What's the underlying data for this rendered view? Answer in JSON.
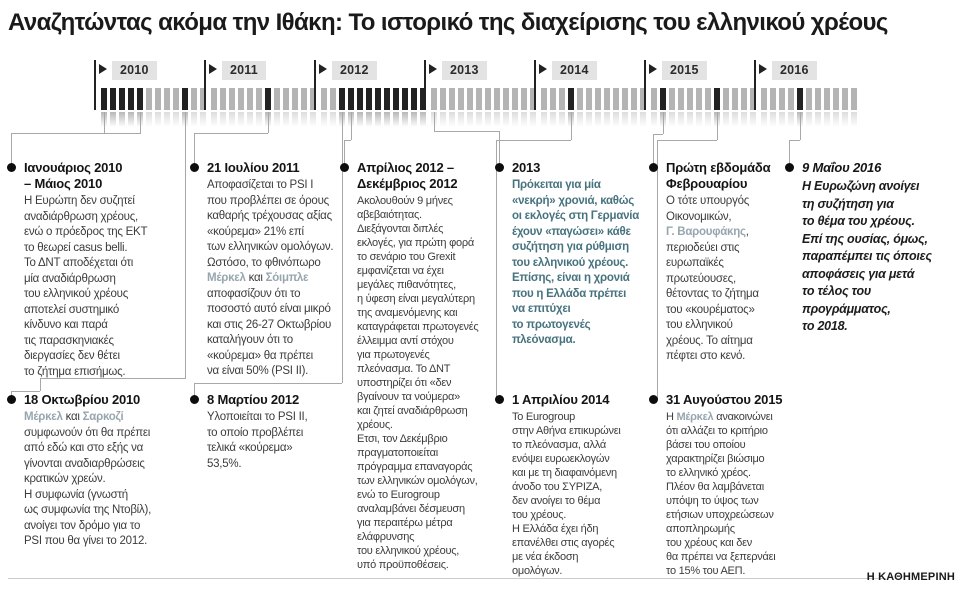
{
  "title": "Αναζητώντας ακόμα την Ιθάκη: Το ιστορικό της διαχείρισης του ελληνικού χρέους",
  "brand": "Η ΚΑΘΗΜΕΡΙΝΗ",
  "timeline": {
    "years": [
      {
        "label": "2010",
        "months": [
          1,
          1,
          1,
          1,
          1,
          0,
          0,
          0,
          0,
          1,
          0,
          0
        ]
      },
      {
        "label": "2011",
        "months": [
          0,
          0,
          0,
          0,
          0,
          0,
          1,
          0,
          0,
          0,
          0,
          0
        ]
      },
      {
        "label": "2012",
        "months": [
          0,
          0,
          1,
          1,
          1,
          1,
          1,
          1,
          1,
          1,
          1,
          1
        ]
      },
      {
        "label": "2013",
        "months": [
          0,
          0,
          0,
          0,
          0,
          0,
          0,
          0,
          0,
          0,
          0,
          0
        ]
      },
      {
        "label": "2014",
        "months": [
          0,
          0,
          0,
          1,
          0,
          0,
          0,
          0,
          0,
          0,
          0,
          0
        ]
      },
      {
        "label": "2015",
        "months": [
          0,
          1,
          0,
          0,
          0,
          0,
          0,
          1,
          0,
          0,
          0,
          0
        ]
      },
      {
        "label": "2016",
        "months": [
          0,
          0,
          0,
          0,
          1,
          0,
          0,
          0,
          0,
          0,
          0
        ]
      }
    ]
  },
  "entries": [
    {
      "heading": "Ιανουάριος 2010\n– Μάιος 2010",
      "body": "Η Ευρώπη δεν συζητεί\nαναδιάρθρωση χρέους,\nενώ ο πρόεδρος της ΕΚΤ\nτο θεωρεί casus belli.\nΤο ΔΝΤ αποδέχεται ότι\nμία αναδιάρθρωση\nτου ελληνικού χρέους\nαποτελεί συστημικό\nκίνδυνο και παρά\nτις παρασκηνιακές\nδιεργασίες δεν θέτει\nτο ζήτημα επισήμως.",
      "highlights": []
    },
    {
      "heading": "18 Οκτωβρίου 2010",
      "body": "Μέρκελ και Σαρκοζί\nσυμφωνούν ότι θα πρέπει\nαπό εδώ και στο εξής να\nγίνονται αναδιαρθρώσεις\nκρατικών χρεών.\nΗ συμφωνία (γνωστή\nως συμφωνία της Ντοβίλ),\nανοίγει τον δρόμο για το\nPSI που θα γίνει το 2012.",
      "highlights": [
        "Μέρκελ",
        "Σαρκοζί"
      ]
    },
    {
      "heading": "21 Ιουλίου 2011",
      "body": "Αποφασίζεται το PSI I\nπου προβλέπει σε όρους\nκαθαρής τρέχουσας αξίας\n«κούρεμα» 21% επί\nτων ελληνικών ομολόγων.\nΩστόσο, το φθινόπωρο\nΜέρκελ και Σόιμπλε\nαποφασίζουν ότι το\nποσοστό αυτό είναι μικρό\nκαι στις 26-27 Οκτωβρίου\nκαταλήγουν ότι το\n«κούρεμα» θα πρέπει\nνα είναι 50% (PSI II).",
      "highlights": [
        "Μέρκελ",
        "Σόιμπλε"
      ]
    },
    {
      "heading": "8 Μαρτίου 2012",
      "body": "Υλοποιείται το PSI II,\nτο οποίο προβλέπει\nτελικά «κούρεμα»\n53,5%.",
      "highlights": []
    },
    {
      "heading": "Απρίλιος 2012 –\nΔεκέμβριος 2012",
      "body": "Ακολουθούν 9 μήνες\nαβεβαιότητας.\nΔιεξάγονται διπλές\nεκλογές, για πρώτη φορά\nτο σενάριο του Grexit\nεμφανίζεται να έχει\nμεγάλες πιθανότητες,\nη ύφεση είναι μεγαλύτερη\nτης αναμενόμενης και\nκαταγράφεται πρωτογενές\nέλλειμμα αντί στόχου\nγια πρωτογενές\nπλεόνασμα. Το ΔΝΤ\nυποστηρίζει ότι «δεν\nβγαίνουν τα νούμερα»\nκαι ζητεί αναδιάρθρωση\nχρέους.\nΕτσι, τον Δεκέμβριο\nπραγματοποιείται\nπρόγραμμα επαναγοράς\nτων ελληνικών ομολόγων,\nενώ το Eurogroup\nαναλαμβάνει δέσμευση\nγια περαιτέρω μέτρα\nελάφρυνσης\nτου ελληνικού χρέους,\nυπό προϋποθέσεις.",
      "highlights": []
    },
    {
      "heading": "2013",
      "body": "Πρόκειται για μία\n«νεκρή» χρονιά, καθώς\nοι εκλογές στη Γερμανία\nέχουν «παγώσει» κάθε\nσυζήτηση για ρύθμιση\nτου ελληνικού χρέους.\nΕπίσης, είναι η χρονιά\nπου η Ελλάδα πρέπει\nνα επιτύχει\nτο πρωτογενές\nπλεόνασμα.",
      "highlights": []
    },
    {
      "heading": "1 Απριλίου 2014",
      "body": "Το Eurogroup\nστην Αθήνα επικυρώνει\nτο πλεόνασμα, αλλά\nενόψει ευρωεκλογών\nκαι με τη διαφαινόμενη\nάνοδο του ΣΥΡΙΖΑ,\nδεν ανοίγει το θέμα\nτου χρέους.\nΗ Ελλάδα έχει ήδη\nεπανέλθει στις αγορές\nμε νέα έκδοση\nομολόγων.",
      "highlights": []
    },
    {
      "heading": "Πρώτη εβδομάδα\nΦεβρουαρίου",
      "body": "Ο τότε υπουργός\nΟικονομικών,\nΓ. Βαρουφάκης,\nπεριοδεύει στις\nευρωπαϊκές\nπρωτεύουσες,\nθέτοντας το ζήτημα\nτου «κουρέματος»\nτου ελληνικού\nχρέους. Το αίτημα\nπέφτει στο κενό.",
      "highlights": [
        "Γ. Βαρουφάκης"
      ]
    },
    {
      "heading": "31 Αυγούστου 2015",
      "body": "Η Μέρκελ ανακοινώνει\nότι αλλάζει το κριτήριο\nβάσει του οποίου\nχαρακτηρίζει βιώσιμο\nτο ελληνικό χρέος.\nΠλέον θα λαμβάνεται\nυπόψη το ύψος των\nετήσιων υποχρεώσεων\nαποπληρωμής\nτου χρέους και δεν\nθα πρέπει να ξεπερνάει\nτο 15% του ΑΕΠ.",
      "highlights": [
        "Μέρκελ"
      ]
    },
    {
      "heading": "9 Μαΐου 2016",
      "body": "Η Ευρωζώνη ανοίγει\nτη συζήτηση για\nτο θέμα του χρέους.\nΕπί της ουσίας, όμως,\nπαραπέμπει τις όποιες\nαποφάσεις για μετά\nτο τέλος του\nπρογράμματος,\nτο 2018.",
      "highlights": []
    }
  ],
  "colors": {
    "ink": "#1a1a1a",
    "body-text": "#3c3c3c",
    "accent-teal": "#47737f",
    "highlight-gray": "#97a6ae",
    "tick-dark": "#222222",
    "tick-light": "#b4b4b4",
    "year-box": "#e3e3e3",
    "line-gray": "#a8a8a8",
    "rule-gray": "#cccccc"
  }
}
